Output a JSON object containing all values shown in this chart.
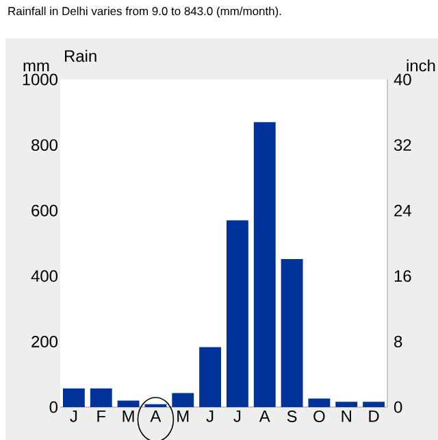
{
  "chart_data": {
    "type": "bar",
    "title": "Rainfall in Delhi varies from 9.0 to 843.0 (mm/month).",
    "subtitle": "Rain",
    "ylabel": "mm",
    "y2label": "inch",
    "categories": [
      "J",
      "F",
      "M",
      "A",
      "M",
      "J",
      "J",
      "A",
      "S",
      "O",
      "N",
      "D"
    ],
    "values": [
      57,
      57,
      20,
      9,
      43,
      183,
      570,
      870,
      452,
      26,
      16,
      16
    ],
    "color": "#003399",
    "ylim": [
      0,
      1000
    ],
    "yticks": [
      0,
      200,
      400,
      600,
      800,
      1000
    ],
    "y2lim": [
      0,
      40
    ],
    "y2ticks": [
      0,
      8,
      16,
      24,
      32,
      40
    ]
  }
}
